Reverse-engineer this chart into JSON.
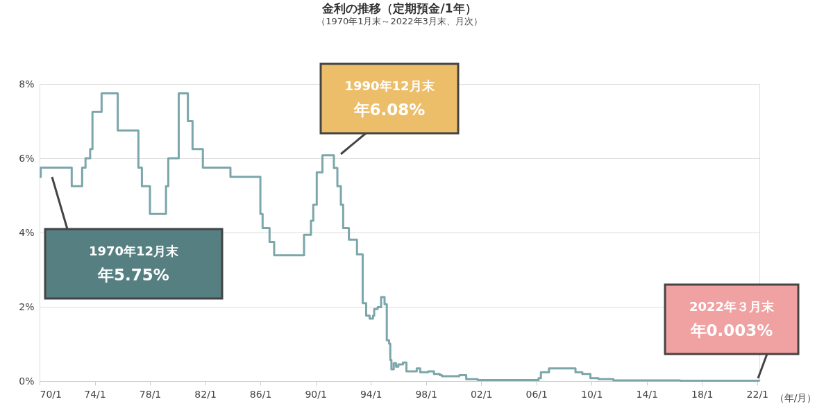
{
  "chart_data": {
    "type": "step",
    "title": "金利の推移（定期預金/1年）",
    "subtitle": "（1970年1月末～2022年3月末、月次）",
    "xlabel": "（年/月）",
    "x": [
      "1970-01",
      "1970-02",
      "1972-05",
      "1973-02",
      "1973-05",
      "1973-09",
      "1973-11",
      "1974-07",
      "1975-09",
      "1977-03",
      "1977-06",
      "1978-01",
      "1979-03",
      "1979-05",
      "1980-02",
      "1980-10",
      "1981-02",
      "1981-11",
      "1983-11",
      "1986-01",
      "1986-03",
      "1986-09",
      "1987-01",
      "1989-03",
      "1989-09",
      "1989-11",
      "1990-02",
      "1990-07",
      "1991-05",
      "1991-08",
      "1991-11",
      "1992-01",
      "1992-06",
      "1993-01",
      "1993-06",
      "1993-09",
      "1993-12",
      "1994-03",
      "1994-04",
      "1994-07",
      "1994-10",
      "1995-01",
      "1995-03",
      "1995-05",
      "1995-06",
      "1995-07",
      "1995-09",
      "1995-11",
      "1996-01",
      "1996-05",
      "1996-08",
      "1997-05",
      "1997-08",
      "1998-03",
      "1998-08",
      "1999-01",
      "1999-03",
      "2000-06",
      "2000-12",
      "2001-10",
      "2006-03",
      "2006-05",
      "2006-12",
      "2008-11",
      "2009-05",
      "2009-12",
      "2010-07",
      "2011-08",
      "2016-06",
      "2022-03"
    ],
    "series": [
      {
        "color": "#7ba6aa",
        "values": [
          5.5,
          5.75,
          5.25,
          5.75,
          6.0,
          6.25,
          7.25,
          7.75,
          6.75,
          5.75,
          5.25,
          4.5,
          5.25,
          6.0,
          7.75,
          7.0,
          6.25,
          5.75,
          5.5,
          4.5,
          4.12,
          3.75,
          3.39,
          3.94,
          4.32,
          4.75,
          5.62,
          6.08,
          5.74,
          5.25,
          4.75,
          4.12,
          3.81,
          3.41,
          2.1,
          1.76,
          1.68,
          1.76,
          1.94,
          1.99,
          2.26,
          2.07,
          1.1,
          1.01,
          0.57,
          0.32,
          0.48,
          0.39,
          0.45,
          0.5,
          0.26,
          0.34,
          0.24,
          0.26,
          0.19,
          0.16,
          0.13,
          0.16,
          0.05,
          0.03,
          0.08,
          0.24,
          0.34,
          0.24,
          0.19,
          0.08,
          0.05,
          0.02,
          0.01,
          0.003
        ]
      }
    ],
    "xlim": [
      "1970-01",
      "2022-03"
    ],
    "xticks": [
      {
        "value": "1970-01",
        "label": "70/1"
      },
      {
        "value": "1974-01",
        "label": "74/1"
      },
      {
        "value": "1978-01",
        "label": "78/1"
      },
      {
        "value": "1982-01",
        "label": "82/1"
      },
      {
        "value": "1986-01",
        "label": "86/1"
      },
      {
        "value": "1990-01",
        "label": "90/1"
      },
      {
        "value": "1994-01",
        "label": "94/1"
      },
      {
        "value": "1998-01",
        "label": "98/1"
      },
      {
        "value": "2002-01",
        "label": "02/1"
      },
      {
        "value": "2006-01",
        "label": "06/1"
      },
      {
        "value": "2010-01",
        "label": "10/1"
      },
      {
        "value": "2014-01",
        "label": "14/1"
      },
      {
        "value": "2018-01",
        "label": "18/1"
      },
      {
        "value": "2022-01",
        "label": "22/1"
      }
    ],
    "ylim": [
      0,
      8
    ],
    "yticks": [
      {
        "value": 0,
        "label": "0%"
      },
      {
        "value": 2,
        "label": "2%"
      },
      {
        "value": 4,
        "label": "4%"
      },
      {
        "value": 6,
        "label": "6%"
      },
      {
        "value": 8,
        "label": "8%"
      }
    ],
    "grid": "y",
    "marker": "none",
    "line_style": "solid",
    "annotations": [
      "1970年12月末",
      "年5.75%",
      "1990年12月末",
      "年6.08%",
      "2022年３月末",
      "年0.003%"
    ]
  }
}
